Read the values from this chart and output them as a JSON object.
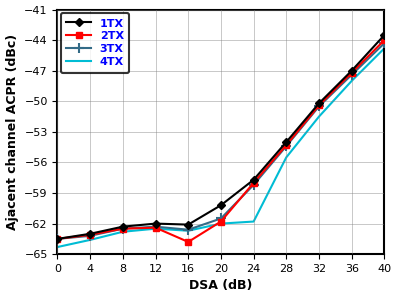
{
  "x": [
    0,
    4,
    8,
    12,
    16,
    20,
    24,
    28,
    32,
    36,
    40
  ],
  "tx1": [
    -63.5,
    -63.0,
    -62.3,
    -62.0,
    -62.1,
    -60.2,
    -57.7,
    -54.0,
    -50.2,
    -47.0,
    -43.5
  ],
  "tx2": [
    -63.5,
    -63.1,
    -62.5,
    -62.4,
    -63.8,
    -61.8,
    -58.0,
    -54.3,
    -50.4,
    -47.2,
    -44.0
  ],
  "tx3": [
    -63.5,
    -63.2,
    -62.5,
    -62.3,
    -62.6,
    -61.5,
    -58.2,
    -54.4,
    -50.5,
    -47.4,
    -44.3
  ],
  "tx4": [
    -64.3,
    -63.6,
    -62.8,
    -62.5,
    -62.7,
    -62.0,
    -61.8,
    -55.5,
    -51.5,
    -48.0,
    -44.8
  ],
  "colors_line": [
    "#000000",
    "#ff0000",
    "#336b87",
    "#00bcd4"
  ],
  "labels": [
    "1TX",
    "2TX",
    "3TX",
    "4TX"
  ],
  "xlabel": "DSA (dB)",
  "ylabel": "Ajacent channel ACPR (dBc)",
  "xlim": [
    0,
    40
  ],
  "ylim": [
    -65,
    -41
  ],
  "xticks": [
    0,
    4,
    8,
    12,
    16,
    20,
    24,
    28,
    32,
    36,
    40
  ],
  "yticks": [
    -65,
    -62,
    -59,
    -56,
    -53,
    -50,
    -47,
    -44,
    -41
  ],
  "linewidth": 1.5,
  "markersize": 4,
  "legend_fontsize": 8,
  "tick_fontsize": 8,
  "label_fontsize": 9
}
